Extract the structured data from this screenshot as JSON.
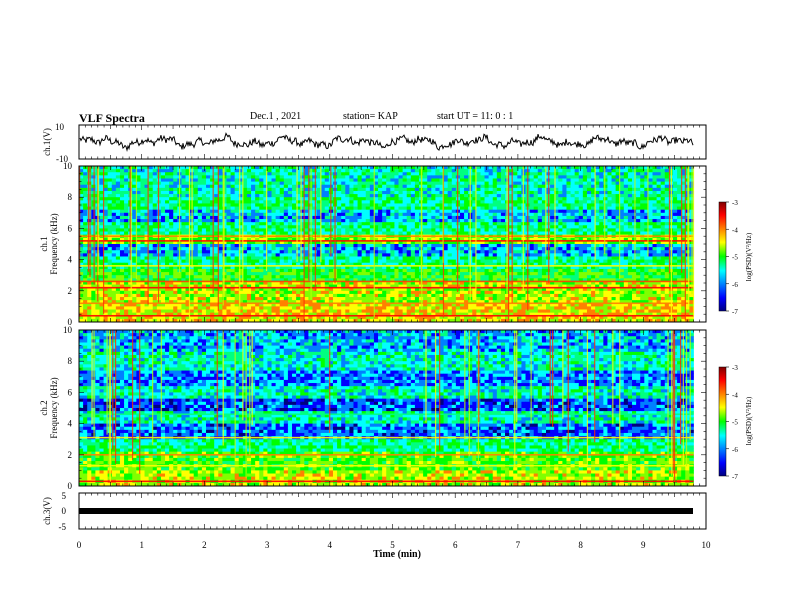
{
  "header": {
    "title": "VLF Spectra",
    "date": "Dec.1 , 2021",
    "station": "station= KAP",
    "start": "start  UT =   11: 0  : 1"
  },
  "chart_data": [
    {
      "type": "line",
      "name": "ch1-waveform",
      "ylabel": "ch.1(V)",
      "ylim": [
        -10,
        10
      ],
      "y_ticks": [
        "10",
        "-10"
      ],
      "xlim": [
        0,
        10
      ],
      "color": "#000000",
      "approx_center": 0,
      "approx_amplitude": 6
    },
    {
      "type": "heatmap",
      "name": "ch1-spectrogram",
      "ylabel": "ch.1\nFrequency (kHz)",
      "ylim": [
        0,
        10
      ],
      "y_ticks": [
        "0",
        "2",
        "4",
        "6",
        "8",
        "10"
      ],
      "xlim": [
        0,
        9.8
      ],
      "colorbar": {
        "label": "log(PSD)(V²/Hz)",
        "range": [
          -7,
          -3
        ],
        "ticks": [
          "-3",
          "-4",
          "-5",
          "-6",
          "-7"
        ]
      }
    },
    {
      "type": "heatmap",
      "name": "ch2-spectrogram",
      "ylabel": "ch.2\nFrequency (kHz)",
      "ylim": [
        0,
        10
      ],
      "y_ticks": [
        "0",
        "2",
        "4",
        "6",
        "8",
        "10"
      ],
      "xlim": [
        0,
        9.8
      ],
      "colorbar": {
        "label": "log(PSD)(V²/Hz)",
        "range": [
          -7,
          -3
        ],
        "ticks": [
          "-3",
          "-4",
          "-5",
          "-6",
          "-7"
        ]
      }
    },
    {
      "type": "line",
      "name": "ch3-waveform",
      "ylabel": "ch.3(V)",
      "ylim": [
        -5,
        5
      ],
      "y_ticks": [
        "5",
        "0",
        "-5"
      ],
      "xlim": [
        0,
        10
      ],
      "approx_value": -0.4,
      "color": "#000000"
    }
  ],
  "x_axis": {
    "label": "Time  (min)",
    "range": [
      0,
      10
    ],
    "ticks": [
      "0",
      "1",
      "2",
      "3",
      "4",
      "5",
      "6",
      "7",
      "8",
      "9",
      "10"
    ]
  },
  "colors": {
    "colormap": [
      "#000080",
      "#0000ff",
      "#00ffff",
      "#00ff00",
      "#ffff00",
      "#ff0000",
      "#800000"
    ]
  }
}
